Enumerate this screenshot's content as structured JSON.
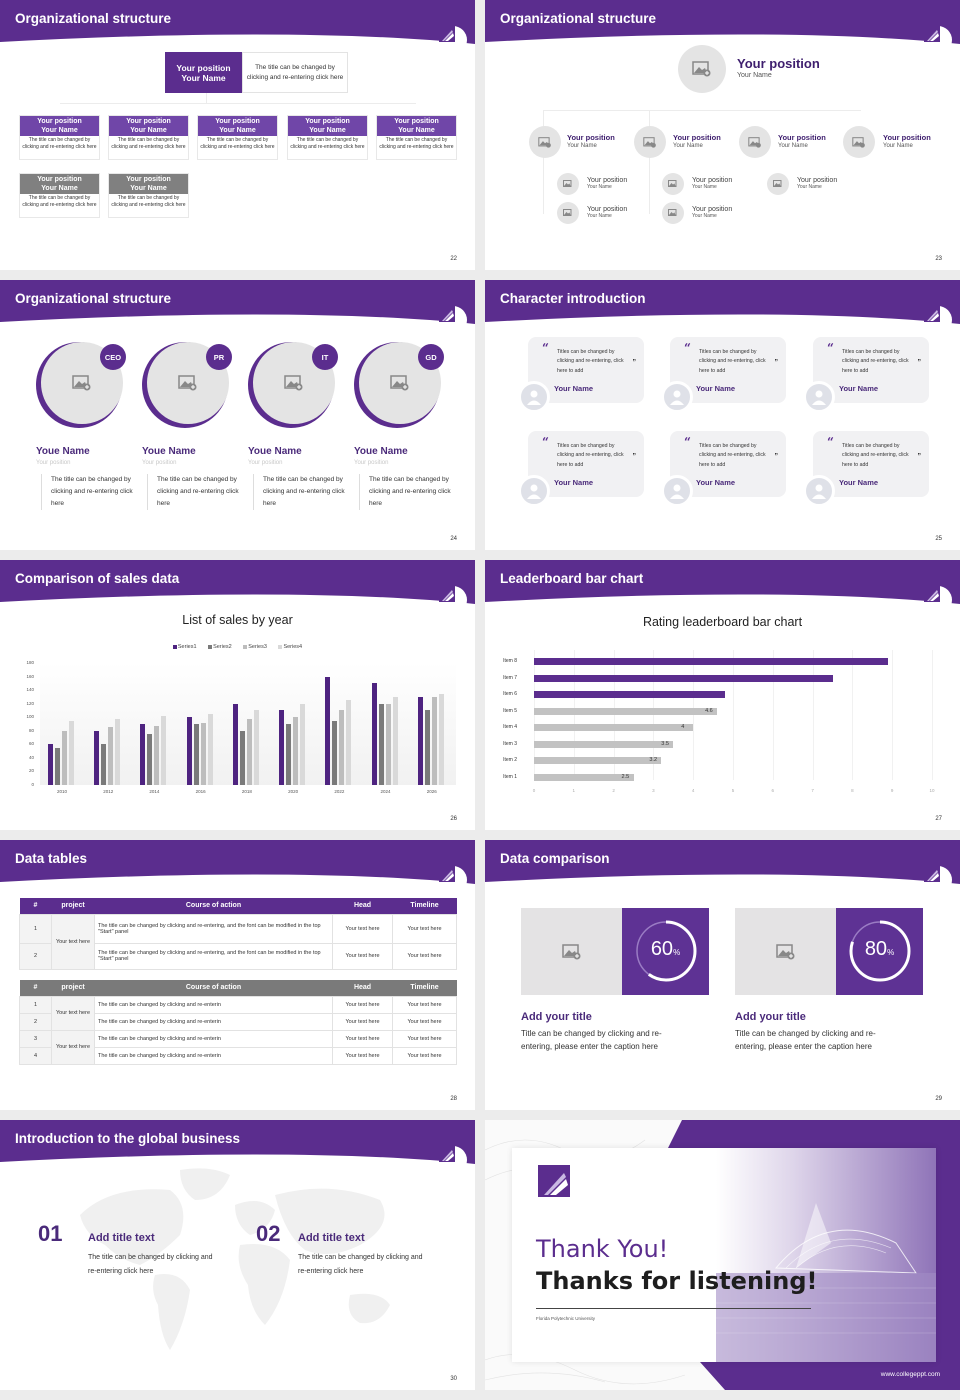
{
  "theme": {
    "accent": "#5b2d8e",
    "accent_light": "#7046a8",
    "gray": "#808080",
    "placeholder_bg": "#e4e4e4"
  },
  "slides": [
    {
      "title": "Organizational structure",
      "page": "22",
      "top": {
        "position": "Your position",
        "name": "Your Name",
        "desc": "The title can be changed by clicking and re-entering click here"
      },
      "cards": [
        {
          "position": "Your position",
          "name": "Your Name",
          "desc": "The title can be changed by clicking and re-entering click here",
          "color": "purple"
        },
        {
          "position": "Your position",
          "name": "Your Name",
          "desc": "The title can be changed by clicking and re-entering click here",
          "color": "purple"
        },
        {
          "position": "Your position",
          "name": "Your Name",
          "desc": "The title can be changed by clicking and re-entering click here",
          "color": "purple"
        },
        {
          "position": "Your position",
          "name": "Your Name",
          "desc": "The title can be changed by clicking and re-entering click here",
          "color": "purple"
        },
        {
          "position": "Your position",
          "name": "Your Name",
          "desc": "The title can be changed by clicking and re-entering click here",
          "color": "purple"
        },
        {
          "position": "Your position",
          "name": "Your Name",
          "desc": "The title can be changed by clicking and re-entering click here",
          "color": "gray"
        },
        {
          "position": "Your position",
          "name": "Your Name",
          "desc": "The title can be changed by clicking and re-entering click here",
          "color": "gray"
        }
      ]
    },
    {
      "title": "Organizational structure",
      "page": "23",
      "top": {
        "position": "Your position",
        "name": "Your Name"
      },
      "level1": [
        {
          "position": "Your position",
          "name": "Your Name"
        },
        {
          "position": "Your position",
          "name": "Your Name"
        },
        {
          "position": "Your position",
          "name": "Your Name"
        },
        {
          "position": "Your position",
          "name": "Your Name"
        }
      ],
      "level2": [
        {
          "position": "Your position",
          "name": "Your Name"
        },
        {
          "position": "Your position",
          "name": "Your Name"
        },
        {
          "position": "Your position",
          "name": "Your Name"
        },
        {
          "position": "Your position",
          "name": "Your Name"
        },
        {
          "position": "Your position",
          "name": "Your Name"
        }
      ]
    },
    {
      "title": "Organizational structure",
      "page": "24",
      "members": [
        {
          "badge": "CEO",
          "name": "Youe Name",
          "position": "Your position",
          "desc": "The title can be changed by clicking and re-entering click here"
        },
        {
          "badge": "PR",
          "name": "Youe Name",
          "position": "Your position",
          "desc": "The title can be changed by clicking and re-entering click here"
        },
        {
          "badge": "IT",
          "name": "Youe Name",
          "position": "Your position",
          "desc": "The title can be changed by clicking and re-entering click here"
        },
        {
          "badge": "GD",
          "name": "Youe Name",
          "position": "Your position",
          "desc": "The title can be changed by clicking and re-entering click here"
        }
      ]
    },
    {
      "title": "Character introduction",
      "page": "25",
      "quotes": [
        {
          "text": "Titles can be changed by clicking and re-entering, click here to add",
          "name": "Your Name"
        },
        {
          "text": "Titles can be changed by clicking and re-entering, click here to add",
          "name": "Your Name"
        },
        {
          "text": "Titles can be changed by clicking and re-entering, click here to add",
          "name": "Your Name"
        },
        {
          "text": "Titles can be changed by clicking and re-entering, click here to add",
          "name": "Your Name"
        },
        {
          "text": "Titles can be changed by clicking and re-entering, click here to add",
          "name": "Your Name"
        },
        {
          "text": "Titles can be changed by clicking and re-entering, click here to add",
          "name": "Your Name"
        }
      ],
      "open_quote": "“",
      "close_quote": "”"
    },
    {
      "title": "Comparison of sales data",
      "page": "26",
      "chart_title": "List of sales by year",
      "legend": [
        "Series1",
        "Series2",
        "Series3",
        "Series4"
      ]
    },
    {
      "title": "Leaderboard bar chart",
      "page": "27",
      "chart_title": "Rating leaderboard bar chart"
    },
    {
      "title": "Data tables",
      "page": "28",
      "table1": {
        "headers": [
          "#",
          "project",
          "Course of action",
          "Head",
          "Timeline"
        ],
        "project": "Your text here",
        "rows": [
          {
            "num": "1",
            "action": "The title can be changed by clicking and re-entering, and the font can be modified in the top \"Start\" panel",
            "head": "Your text here",
            "timeline": "Your text here"
          },
          {
            "num": "2",
            "action": "The title can be changed by clicking and re-entering, and the font can be modified in the top \"Start\" panel",
            "head": "Your text here",
            "timeline": "Your text here"
          }
        ]
      },
      "table2": {
        "headers": [
          "#",
          "project",
          "Course of action",
          "Head",
          "Timeline"
        ],
        "projects": [
          "Your text here",
          "Your text here"
        ],
        "rows": [
          {
            "num": "1",
            "action": "The title can be changed by clicking and re-enterin",
            "head": "Your text here",
            "timeline": "Your text here"
          },
          {
            "num": "2",
            "action": "The title can be changed by clicking and re-enterin",
            "head": "Your text here",
            "timeline": "Your text here"
          },
          {
            "num": "3",
            "action": "The title can be changed by clicking and re-enterin",
            "head": "Your text here",
            "timeline": "Your text here"
          },
          {
            "num": "4",
            "action": "The title can be changed by clicking and re-enterin",
            "head": "Your text here",
            "timeline": "Your text here"
          }
        ]
      }
    },
    {
      "title": "Data comparison",
      "page": "29",
      "items": [
        {
          "value": "60",
          "unit": "%",
          "percent": 60,
          "title": "Add your title",
          "desc": "Title can be changed by clicking and re-entering, please enter the caption here"
        },
        {
          "value": "80",
          "unit": "%",
          "percent": 80,
          "title": "Add your title",
          "desc": "Title can be changed by clicking and re-entering, please enter the caption here"
        }
      ]
    },
    {
      "title": "Introduction to the global business",
      "page": "30",
      "items": [
        {
          "num": "01",
          "title": "Add title text",
          "desc": "The title can be changed by clicking and re-entering click here"
        },
        {
          "num": "02",
          "title": "Add title text",
          "desc": "The title can be changed by clicking and re-entering click here"
        }
      ]
    },
    {
      "line1": "Thank You!",
      "line2": "Thanks for listening!",
      "university": "Florida Polytechnic University",
      "url": "www.collegeppt.com"
    }
  ],
  "chart_data": [
    {
      "type": "bar",
      "title": "List of sales by year",
      "categories": [
        "2010",
        "2012",
        "2014",
        "2016",
        "2018",
        "2020",
        "2022",
        "2024",
        "2026"
      ],
      "series": [
        {
          "name": "Series1",
          "color": "#4e2380",
          "values": [
            60,
            80,
            90,
            100,
            120,
            110,
            160,
            150,
            130
          ]
        },
        {
          "name": "Series2",
          "color": "#7a7a7a",
          "values": [
            55,
            60,
            75,
            90,
            80,
            90,
            95,
            120,
            110
          ]
        },
        {
          "name": "Series3",
          "color": "#bdbdbd",
          "values": [
            80,
            85,
            87,
            92,
            98,
            100,
            110,
            120,
            130
          ]
        },
        {
          "name": "Series4",
          "color": "#d9d9d9",
          "values": [
            95,
            98,
            102,
            105,
            110,
            120,
            126,
            130,
            135
          ]
        }
      ],
      "yticks": [
        0,
        20,
        40,
        60,
        80,
        100,
        120,
        140,
        160,
        180
      ],
      "ylim": [
        0,
        180
      ],
      "xlabel": "",
      "ylabel": "",
      "legend_position": "top",
      "grid": true
    },
    {
      "type": "bar",
      "orientation": "horizontal",
      "title": "Rating leaderboard bar chart",
      "categories": [
        "Item 1",
        "Item 2",
        "Item 3",
        "Item 4",
        "Item 5",
        "Item 6",
        "Item 7",
        "Item 8"
      ],
      "values": [
        2.5,
        3.2,
        3.5,
        4,
        4.6,
        4.8,
        7.5,
        8.9
      ],
      "data_labels": [
        "2.5",
        "3.2",
        "3.5",
        "4",
        "4.6",
        "",
        "",
        ""
      ],
      "highlight": [
        "Item 6",
        "Item 7",
        "Item 8"
      ],
      "xticks": [
        0,
        1,
        2,
        3,
        4,
        5,
        6,
        7,
        8,
        9,
        10
      ],
      "xlim": [
        0,
        10
      ],
      "xlabel": "",
      "ylabel": "",
      "grid": true
    }
  ]
}
